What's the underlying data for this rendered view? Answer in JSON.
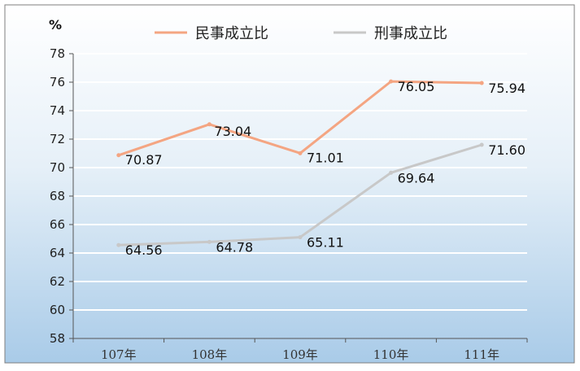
{
  "chart_data": {
    "type": "line",
    "ylabel": "%",
    "categories": [
      "107年",
      "108年",
      "109年",
      "110年",
      "111年"
    ],
    "ylim": [
      58,
      78
    ],
    "yticks": [
      58,
      60,
      62,
      64,
      66,
      68,
      70,
      72,
      74,
      76,
      78
    ],
    "grid": true,
    "legend": "top",
    "series": [
      {
        "name": "民事成立比",
        "color": "#f4a582",
        "values": [
          70.87,
          73.04,
          71.01,
          76.05,
          75.94
        ],
        "labels": [
          "70.87",
          "73.04",
          "71.01",
          "76.05",
          "75.94"
        ]
      },
      {
        "name": "刑事成立比",
        "color": "#c8c8c8",
        "values": [
          64.56,
          64.78,
          65.11,
          69.64,
          71.6
        ],
        "labels": [
          "64.56",
          "64.78",
          "65.11",
          "69.64",
          "71.60"
        ]
      }
    ]
  }
}
